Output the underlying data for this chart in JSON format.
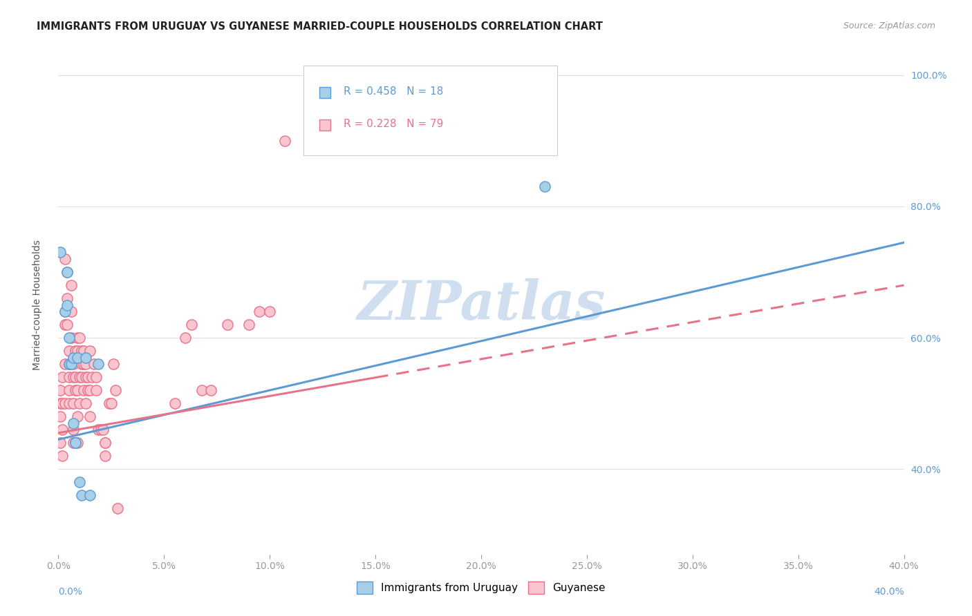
{
  "title": "IMMIGRANTS FROM URUGUAY VS GUYANESE MARRIED-COUPLE HOUSEHOLDS CORRELATION CHART",
  "source": "Source: ZipAtlas.com",
  "ylabel_label": "Married-couple Households",
  "legend_blue_r": "R = 0.458",
  "legend_blue_n": "N = 18",
  "legend_pink_r": "R = 0.228",
  "legend_pink_n": "N = 79",
  "legend_label_blue": "Immigrants from Uruguay",
  "legend_label_pink": "Guyanese",
  "color_blue": "#a8cfe8",
  "color_blue_line": "#5b9bd5",
  "color_pink": "#f9c6d0",
  "color_pink_line": "#e8728a",
  "color_watermark": "#d0dff0",
  "blue_points_x": [
    0.001,
    0.003,
    0.004,
    0.004,
    0.005,
    0.005,
    0.006,
    0.007,
    0.007,
    0.008,
    0.008,
    0.009,
    0.01,
    0.011,
    0.013,
    0.015,
    0.23,
    0.019
  ],
  "blue_points_y": [
    0.73,
    0.64,
    0.65,
    0.7,
    0.6,
    0.56,
    0.56,
    0.57,
    0.47,
    0.44,
    0.44,
    0.57,
    0.38,
    0.36,
    0.57,
    0.36,
    0.83,
    0.56
  ],
  "pink_points_x": [
    0.001,
    0.001,
    0.001,
    0.001,
    0.002,
    0.002,
    0.002,
    0.002,
    0.003,
    0.003,
    0.003,
    0.003,
    0.003,
    0.004,
    0.004,
    0.004,
    0.005,
    0.005,
    0.005,
    0.005,
    0.005,
    0.006,
    0.006,
    0.006,
    0.007,
    0.007,
    0.007,
    0.007,
    0.007,
    0.008,
    0.008,
    0.008,
    0.009,
    0.009,
    0.009,
    0.009,
    0.009,
    0.01,
    0.01,
    0.01,
    0.011,
    0.011,
    0.011,
    0.012,
    0.012,
    0.012,
    0.013,
    0.013,
    0.013,
    0.014,
    0.014,
    0.015,
    0.015,
    0.015,
    0.016,
    0.017,
    0.018,
    0.018,
    0.019,
    0.02,
    0.021,
    0.022,
    0.022,
    0.022,
    0.024,
    0.025,
    0.026,
    0.027,
    0.028,
    0.055,
    0.06,
    0.063,
    0.068,
    0.072,
    0.08,
    0.09,
    0.095,
    0.1,
    0.107
  ],
  "pink_points_y": [
    0.52,
    0.5,
    0.48,
    0.44,
    0.54,
    0.5,
    0.46,
    0.42,
    0.72,
    0.64,
    0.62,
    0.56,
    0.5,
    0.7,
    0.66,
    0.62,
    0.58,
    0.56,
    0.54,
    0.52,
    0.5,
    0.68,
    0.64,
    0.6,
    0.56,
    0.54,
    0.5,
    0.46,
    0.44,
    0.58,
    0.54,
    0.52,
    0.6,
    0.58,
    0.52,
    0.48,
    0.44,
    0.6,
    0.54,
    0.5,
    0.58,
    0.56,
    0.54,
    0.58,
    0.56,
    0.52,
    0.56,
    0.54,
    0.5,
    0.54,
    0.52,
    0.58,
    0.52,
    0.48,
    0.54,
    0.56,
    0.54,
    0.52,
    0.46,
    0.46,
    0.46,
    0.44,
    0.42,
    0.44,
    0.5,
    0.5,
    0.56,
    0.52,
    0.34,
    0.5,
    0.6,
    0.62,
    0.52,
    0.52,
    0.62,
    0.62,
    0.64,
    0.64,
    0.9
  ],
  "xlim": [
    0.0,
    0.4
  ],
  "ylim": [
    0.27,
    1.03
  ],
  "blue_line_x": [
    0.0,
    0.4
  ],
  "blue_line_y": [
    0.445,
    0.745
  ],
  "pink_line_x": [
    0.0,
    0.4
  ],
  "pink_line_y": [
    0.455,
    0.68
  ],
  "pink_dashed_line_x": [
    0.0,
    0.4
  ],
  "pink_dashed_line_y": [
    0.455,
    0.68
  ],
  "right_ytick_labels": [
    "40.0%",
    "60.0%",
    "80.0%",
    "100.0%"
  ],
  "right_ytick_values": [
    0.4,
    0.6,
    0.8,
    1.0
  ],
  "grid_ytick_values": [
    0.4,
    0.6,
    0.8,
    1.0
  ],
  "background_color": "#ffffff",
  "grid_color": "#e0e0e0"
}
